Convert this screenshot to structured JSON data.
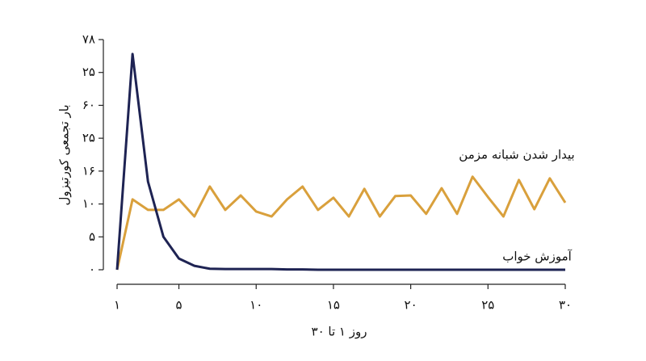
{
  "chart_data": {
    "type": "line",
    "x_label": "روز ۱ تا ۳۰",
    "y_label": "بار تجمعی کورتیزول",
    "x": [
      1,
      2,
      3,
      4,
      5,
      6,
      7,
      8,
      9,
      10,
      11,
      12,
      13,
      14,
      15,
      16,
      17,
      18,
      19,
      20,
      21,
      22,
      23,
      24,
      25,
      26,
      27,
      28,
      29,
      30
    ],
    "series": [
      {
        "name": "بیدار شدن شبانه مزمن",
        "color": "#d9a03c",
        "values": [
          0,
          2.14,
          1.82,
          1.82,
          2.14,
          1.62,
          2.53,
          1.82,
          2.26,
          1.77,
          1.62,
          2.14,
          2.53,
          1.82,
          2.19,
          1.62,
          2.46,
          1.62,
          2.24,
          2.26,
          1.7,
          2.48,
          1.7,
          2.83,
          2.21,
          1.62,
          2.73,
          1.84,
          2.78,
          2.04
        ]
      },
      {
        "name": "آموزش خواب",
        "color": "#1e2353",
        "values": [
          0,
          6.56,
          2.68,
          1.0,
          0.34,
          0.12,
          0.03,
          0.02,
          0.02,
          0.02,
          0.02,
          0.01,
          0.01,
          0,
          0,
          0,
          0,
          0,
          0,
          0,
          0,
          0,
          0,
          0,
          0,
          0,
          0,
          0,
          0,
          0
        ]
      }
    ],
    "xlim": [
      1,
      30
    ],
    "xticks": [
      {
        "value": 1,
        "label": "۱"
      },
      {
        "value": 5,
        "label": "۵"
      },
      {
        "value": 10,
        "label": "۱۰"
      },
      {
        "value": 15,
        "label": "۱۵"
      },
      {
        "value": 20,
        "label": "۲۰"
      },
      {
        "value": 25,
        "label": "۲۵"
      },
      {
        "value": 30,
        "label": "۳۰"
      }
    ],
    "ylim": [
      0,
      7
    ],
    "yticks": [
      {
        "value": 0,
        "label": "۰"
      },
      {
        "value": 1,
        "label": "۵"
      },
      {
        "value": 2,
        "label": "۱۰"
      },
      {
        "value": 3,
        "label": "۱۶"
      },
      {
        "value": 4,
        "label": "۲۵"
      },
      {
        "value": 5,
        "label": "۶۰"
      },
      {
        "value": 6,
        "label": "۲۵"
      },
      {
        "value": 7,
        "label": "۷۸"
      }
    ],
    "grid": false
  }
}
